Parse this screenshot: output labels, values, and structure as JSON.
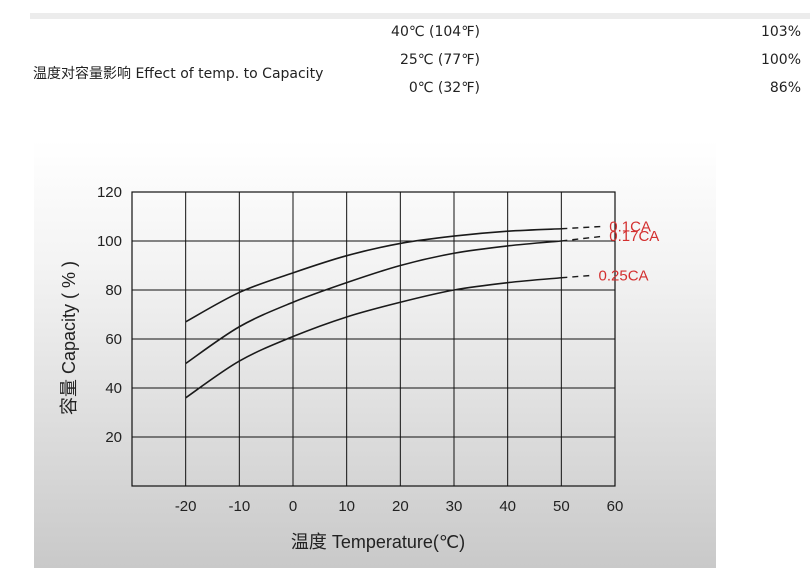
{
  "temperature_effect": {
    "label": "温度对容量影响 Effect of temp. to Capacity",
    "rows": [
      {
        "temp": "40℃ (104℉)",
        "value": "103%"
      },
      {
        "temp": "25℃  (77℉)",
        "value": "100%"
      },
      {
        "temp": "0℃  (32℉)",
        "value": "86%"
      }
    ]
  },
  "colors": {
    "curve": "#1a1a1a",
    "series_label": "#d32f2f",
    "grid": "#111111"
  },
  "chart_data": {
    "type": "line",
    "xlabel": "温度 Temperature(℃)",
    "ylabel": "容量 Capacity ( % )",
    "x_ticks": [
      "-20",
      "-10",
      "0",
      "10",
      "20",
      "30",
      "40",
      "50",
      "60"
    ],
    "y_ticks": [
      "120",
      "100",
      "80",
      "60",
      "40",
      "20"
    ],
    "xlim": [
      -30,
      60
    ],
    "ylim": [
      0,
      120
    ],
    "grid": true,
    "series": [
      {
        "name": "0.1CA",
        "x": [
          -20,
          -10,
          0,
          10,
          20,
          30,
          40,
          50
        ],
        "y": [
          67,
          79,
          87,
          94,
          99,
          102,
          104,
          105
        ],
        "extrapolated": [
          [
            50,
            105
          ],
          [
            58,
            106
          ]
        ]
      },
      {
        "name": "0.17CA",
        "x": [
          -20,
          -10,
          0,
          10,
          20,
          30,
          40,
          50
        ],
        "y": [
          50,
          65,
          75,
          83,
          90,
          95,
          98,
          100
        ],
        "extrapolated": [
          [
            50,
            100
          ],
          [
            58,
            102
          ]
        ]
      },
      {
        "name": "0.25CA",
        "x": [
          -20,
          -10,
          0,
          10,
          20,
          30,
          40,
          50
        ],
        "y": [
          36,
          51,
          61,
          69,
          75,
          80,
          83,
          85
        ],
        "extrapolated": [
          [
            50,
            85
          ],
          [
            56,
            86
          ]
        ]
      }
    ]
  }
}
